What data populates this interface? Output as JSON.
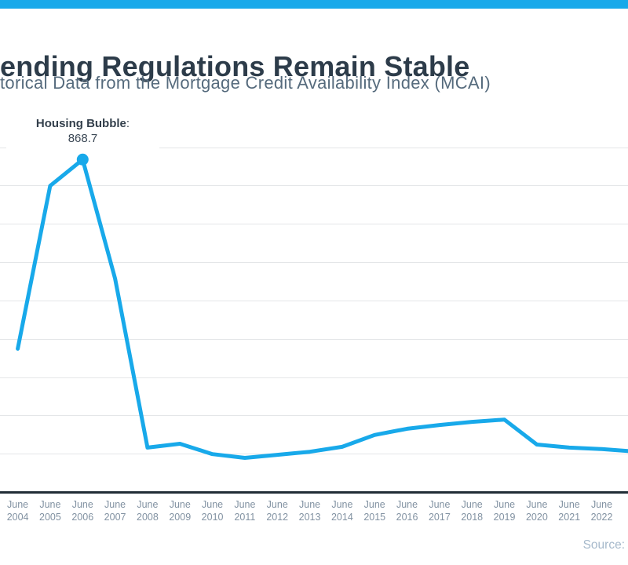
{
  "theme": {
    "accent_blue": "#18a9ea",
    "title_color": "#2d3c4a",
    "subtitle_color": "#566b7d",
    "axis_color": "#212d36",
    "grid_color": "#e4e6e8",
    "tick_label_color": "#8292a2",
    "source_color": "#a6b9cb"
  },
  "header": {
    "title": "ending Regulations Remain Stable",
    "subtitle": "torical Data from the Mortgage Credit Availability Index (MCAI)"
  },
  "annotation": {
    "label": "Housing Bubble",
    "colon": ":",
    "value": "868.7"
  },
  "source": {
    "label": "Source:"
  },
  "chart_data": {
    "type": "line",
    "title": "ending Regulations Remain Stable",
    "subtitle": "torical Data from the Mortgage Credit Availability Index (MCAI)",
    "categories": [
      "June 2004",
      "June 2005",
      "June 2006",
      "June 2007",
      "June 2008",
      "June 2009",
      "June 2010",
      "June 2011",
      "June 2012",
      "June 2013",
      "June 2014",
      "June 2015",
      "June 2016",
      "June 2017",
      "June 2018",
      "June 2019",
      "June 2020",
      "June 2021",
      "June 2022"
    ],
    "values": [
      375,
      800,
      868.7,
      558,
      117,
      127,
      100,
      90,
      98,
      106,
      119,
      150,
      166,
      176,
      184,
      190,
      125,
      117,
      113
    ],
    "right_edge_value": 108,
    "xlabel": "",
    "ylabel": "",
    "ylim": [
      0,
      900
    ],
    "grid_step": 100,
    "grid": true,
    "legend": false,
    "line_color": "#18a9ea",
    "marker_color": "#18a9ea",
    "annotated_point": {
      "category": "June 2006",
      "value": 868.7,
      "label": "Housing Bubble: 868.7"
    }
  }
}
